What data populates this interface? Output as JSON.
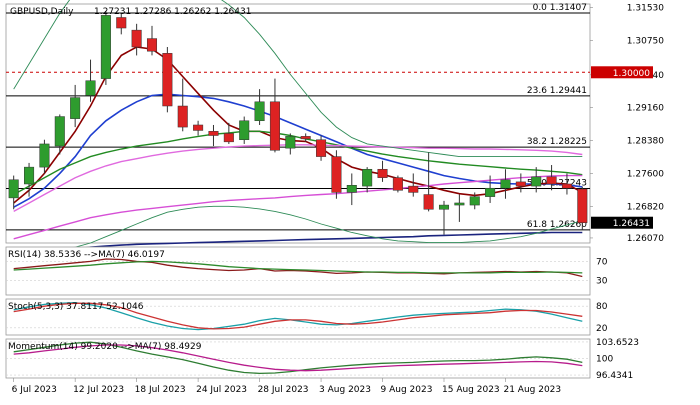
{
  "chart_data": {
    "type": "candlestick",
    "symbol": "GBPUSD",
    "timeframe": "Daily",
    "header": {
      "title": "GBPUSD,Daily",
      "ohlc": [
        "1.27231",
        "1.27286",
        "1.26262",
        "1.26431"
      ]
    },
    "x_labels": [
      {
        "label": "6 Jul 2023",
        "index": 0
      },
      {
        "label": "12 Jul 2023",
        "index": 4
      },
      {
        "label": "18 Jul 2023",
        "index": 8
      },
      {
        "label": "24 Jul 2023",
        "index": 12
      },
      {
        "label": "28 Jul 2023",
        "index": 16
      },
      {
        "label": "3 Aug 2023",
        "index": 20
      },
      {
        "label": "9 Aug 2023",
        "index": 24
      },
      {
        "label": "15 Aug 2023",
        "index": 28
      },
      {
        "label": "21 Aug 2023",
        "index": 32
      }
    ],
    "price_axis": {
      "range": [
        1.2595,
        1.3162
      ],
      "ticks": [
        {
          "value": 1.3154,
          "label": "1.31530"
        },
        {
          "value": 1.3075,
          "label": "1.30750"
        },
        {
          "value": 1.2994,
          "label": "1.29940"
        },
        {
          "value": 1.2916,
          "label": "1.29160"
        },
        {
          "value": 1.2838,
          "label": "1.28380"
        },
        {
          "value": 1.276,
          "label": "1.27600"
        },
        {
          "value": 1.2682,
          "label": "1.26820"
        },
        {
          "value": 1.2607,
          "label": "1.26070"
        }
      ],
      "current_price": {
        "value": 1.26431,
        "label": "1.26431"
      },
      "marked_level": {
        "value": 1.3,
        "label": "1.30000",
        "color": "#cc0000"
      }
    },
    "fibonacci": [
      {
        "label": "0.0 1.31407",
        "value": 1.31407
      },
      {
        "label": "23.6 1.29441",
        "value": 1.29441
      },
      {
        "label": "38.2 1.28225",
        "value": 1.28225
      },
      {
        "label": "50.0 1.27243",
        "value": 1.27243
      },
      {
        "label": "61.8 1.26260",
        "value": 1.2626
      }
    ],
    "candles": [
      {
        "o": 1.2702,
        "h": 1.2755,
        "l": 1.2675,
        "c": 1.2745
      },
      {
        "o": 1.2735,
        "h": 1.2785,
        "l": 1.2705,
        "c": 1.2775
      },
      {
        "o": 1.2775,
        "h": 1.284,
        "l": 1.276,
        "c": 1.283
      },
      {
        "o": 1.2825,
        "h": 1.29,
        "l": 1.2805,
        "c": 1.2895
      },
      {
        "o": 1.289,
        "h": 1.297,
        "l": 1.287,
        "c": 1.294
      },
      {
        "o": 1.2945,
        "h": 1.303,
        "l": 1.293,
        "c": 1.298
      },
      {
        "o": 1.2985,
        "h": 1.3145,
        "l": 1.297,
        "c": 1.3135
      },
      {
        "o": 1.313,
        "h": 1.3142,
        "l": 1.309,
        "c": 1.3105
      },
      {
        "o": 1.31,
        "h": 1.3115,
        "l": 1.304,
        "c": 1.306
      },
      {
        "o": 1.308,
        "h": 1.311,
        "l": 1.304,
        "c": 1.305
      },
      {
        "o": 1.3045,
        "h": 1.306,
        "l": 1.2905,
        "c": 1.292
      },
      {
        "o": 1.292,
        "h": 1.2985,
        "l": 1.286,
        "c": 1.287
      },
      {
        "o": 1.2875,
        "h": 1.2885,
        "l": 1.285,
        "c": 1.2862
      },
      {
        "o": 1.286,
        "h": 1.2875,
        "l": 1.2825,
        "c": 1.285
      },
      {
        "o": 1.2855,
        "h": 1.288,
        "l": 1.283,
        "c": 1.2835
      },
      {
        "o": 1.284,
        "h": 1.2895,
        "l": 1.283,
        "c": 1.2885
      },
      {
        "o": 1.2885,
        "h": 1.296,
        "l": 1.2875,
        "c": 1.293
      },
      {
        "o": 1.293,
        "h": 1.2985,
        "l": 1.281,
        "c": 1.2815
      },
      {
        "o": 1.282,
        "h": 1.2855,
        "l": 1.2805,
        "c": 1.2848
      },
      {
        "o": 1.2848,
        "h": 1.2855,
        "l": 1.2835,
        "c": 1.2842
      },
      {
        "o": 1.284,
        "h": 1.285,
        "l": 1.279,
        "c": 1.28
      },
      {
        "o": 1.28,
        "h": 1.2815,
        "l": 1.27,
        "c": 1.2715
      },
      {
        "o": 1.2715,
        "h": 1.276,
        "l": 1.2685,
        "c": 1.2732
      },
      {
        "o": 1.273,
        "h": 1.2775,
        "l": 1.2715,
        "c": 1.277
      },
      {
        "o": 1.277,
        "h": 1.279,
        "l": 1.274,
        "c": 1.275
      },
      {
        "o": 1.275,
        "h": 1.2755,
        "l": 1.2715,
        "c": 1.272
      },
      {
        "o": 1.273,
        "h": 1.276,
        "l": 1.2705,
        "c": 1.2715
      },
      {
        "o": 1.271,
        "h": 1.281,
        "l": 1.267,
        "c": 1.2675
      },
      {
        "o": 1.2675,
        "h": 1.2695,
        "l": 1.2615,
        "c": 1.2685
      },
      {
        "o": 1.2685,
        "h": 1.271,
        "l": 1.2645,
        "c": 1.269
      },
      {
        "o": 1.2685,
        "h": 1.2715,
        "l": 1.2675,
        "c": 1.2705
      },
      {
        "o": 1.2705,
        "h": 1.2755,
        "l": 1.269,
        "c": 1.2725
      },
      {
        "o": 1.2725,
        "h": 1.277,
        "l": 1.27,
        "c": 1.2745
      },
      {
        "o": 1.274,
        "h": 1.276,
        "l": 1.2715,
        "c": 1.273
      },
      {
        "o": 1.273,
        "h": 1.2775,
        "l": 1.2715,
        "c": 1.2752
      },
      {
        "o": 1.2752,
        "h": 1.278,
        "l": 1.272,
        "c": 1.2735
      },
      {
        "o": 1.2735,
        "h": 1.276,
        "l": 1.271,
        "c": 1.2725
      },
      {
        "o": 1.27231,
        "h": 1.27286,
        "l": 1.26262,
        "c": 1.26431
      }
    ],
    "overlays": [
      {
        "name": "",
        "color": "#1f3fd0",
        "width": 1.6,
        "values": [
          1.268,
          1.27,
          1.2725,
          1.276,
          1.28,
          1.285,
          1.2885,
          1.291,
          1.293,
          1.2945,
          1.2948,
          1.2945,
          1.2942,
          1.2938,
          1.293,
          1.292,
          1.2908,
          1.2895,
          1.288,
          1.2865,
          1.285,
          1.2835,
          1.282,
          1.2805,
          1.2795,
          1.2785,
          1.2775,
          1.2765,
          1.2755,
          1.2748,
          1.2742,
          1.2738,
          1.2736,
          1.2735,
          1.2735,
          1.2735,
          1.2733,
          1.2728
        ]
      },
      {
        "name": "",
        "color": "#8b0000",
        "width": 1.6,
        "values": [
          1.269,
          1.272,
          1.276,
          1.281,
          1.286,
          1.292,
          1.299,
          1.304,
          1.306,
          1.3055,
          1.303,
          1.299,
          1.295,
          1.291,
          1.2875,
          1.286,
          1.286,
          1.2845,
          1.2838,
          1.2836,
          1.282,
          1.2795,
          1.2775,
          1.2765,
          1.2758,
          1.2748,
          1.2738,
          1.273,
          1.272,
          1.2712,
          1.2708,
          1.2712,
          1.272,
          1.2728,
          1.2735,
          1.2737,
          1.2735,
          1.2715
        ]
      },
      {
        "name": "",
        "color": "#228b22",
        "width": 1.4,
        "values": [
          1.271,
          1.273,
          1.275,
          1.277,
          1.2785,
          1.28,
          1.281,
          1.2818,
          1.2825,
          1.283,
          1.2835,
          1.2842,
          1.2848,
          1.2853,
          1.2856,
          1.286,
          1.286,
          1.2856,
          1.285,
          1.2842,
          1.2835,
          1.2828,
          1.282,
          1.2813,
          1.2806,
          1.28,
          1.2795,
          1.279,
          1.2786,
          1.2782,
          1.2779,
          1.2776,
          1.2773,
          1.277,
          1.2768,
          1.2765,
          1.2762,
          1.2757
        ]
      },
      {
        "name": "",
        "color": "#e06adf",
        "width": 1.4,
        "values": [
          1.267,
          1.269,
          1.271,
          1.273,
          1.275,
          1.2765,
          1.2778,
          1.2788,
          1.2795,
          1.2802,
          1.2808,
          1.2813,
          1.2817,
          1.282,
          1.2823,
          1.2825,
          1.2826,
          1.2827,
          1.2828,
          1.2828,
          1.2827,
          1.2826,
          1.2825,
          1.2824,
          1.2823,
          1.2822,
          1.2821,
          1.282,
          1.282,
          1.2819,
          1.2818,
          1.2818,
          1.2817,
          1.2816,
          1.2815,
          1.2813,
          1.281,
          1.2805
        ]
      },
      {
        "name": "",
        "color": "#d64fd6",
        "width": 1.4,
        "values": [
          1.2605,
          1.2615,
          1.2625,
          1.2635,
          1.2645,
          1.2655,
          1.2662,
          1.2668,
          1.2673,
          1.2677,
          1.2681,
          1.2685,
          1.2689,
          1.2693,
          1.2696,
          1.2698,
          1.27,
          1.2702,
          1.2705,
          1.2708,
          1.271,
          1.2712,
          1.2715,
          1.2718,
          1.2721,
          1.2724,
          1.2728,
          1.2731,
          1.2735,
          1.2738,
          1.2741,
          1.2744,
          1.2747,
          1.275,
          1.2752,
          1.2754,
          1.2755,
          1.2755
        ]
      },
      {
        "name": "",
        "color": "#1a237e",
        "width": 1.6,
        "values": [
          1.256,
          1.2565,
          1.257,
          1.2575,
          1.258,
          1.2585,
          1.2588,
          1.259,
          1.2592,
          1.2593,
          1.2594,
          1.2595,
          1.2596,
          1.2597,
          1.2598,
          1.2599,
          1.26,
          1.2601,
          1.2602,
          1.2603,
          1.2604,
          1.2605,
          1.2606,
          1.2607,
          1.2608,
          1.2609,
          1.261,
          1.2612,
          1.2613,
          1.2614,
          1.2615,
          1.2616,
          1.2617,
          1.2618,
          1.2619,
          1.262,
          1.262,
          1.262
        ]
      },
      {
        "name": "",
        "color": "#2e8b57",
        "width": 0.9,
        "values": [
          1.296,
          1.302,
          1.308,
          1.314,
          1.319,
          1.322,
          1.324,
          1.325,
          1.3245,
          1.3238,
          1.323,
          1.322,
          1.3205,
          1.3185,
          1.316,
          1.313,
          1.309,
          1.3045,
          1.2995,
          1.295,
          1.2905,
          1.287,
          1.2845,
          1.283,
          1.2825,
          1.282,
          1.2815,
          1.281,
          1.2805,
          1.28,
          1.28,
          1.28,
          1.28,
          1.28,
          1.28,
          1.28,
          1.28,
          1.28
        ]
      },
      {
        "name": "",
        "color": "#2e8b57",
        "width": 0.9,
        "values": [
          1.257,
          1.257,
          1.2575,
          1.258,
          1.2585,
          1.2595,
          1.261,
          1.2625,
          1.264,
          1.2655,
          1.2668,
          1.2675,
          1.268,
          1.2682,
          1.2682,
          1.268,
          1.2676,
          1.267,
          1.2662,
          1.2652,
          1.264,
          1.263,
          1.262,
          1.2612,
          1.2605,
          1.26,
          1.2598,
          1.2596,
          1.2596,
          1.2596,
          1.2598,
          1.26,
          1.2605,
          1.261,
          1.2618,
          1.2628,
          1.2638,
          1.2648
        ]
      }
    ],
    "panels": [
      {
        "id": "rsi",
        "label": "RSI(14) 38.5336",
        "ma_label": "MA(7) 46.0197",
        "range": [
          0,
          100
        ],
        "ticks": [
          {
            "value": 70,
            "label": "70"
          },
          {
            "value": 30,
            "label": "30"
          }
        ],
        "series": [
          {
            "name": "RSI(14)",
            "color": "#8b1a1a",
            "values": [
              55,
              58,
              61,
              64,
              67,
              70,
              75,
              74,
              70,
              68,
              62,
              58,
              55,
              53,
              51,
              52,
              55,
              50,
              51,
              50,
              48,
              45,
              46,
              48,
              47,
              46,
              46,
              45,
              44,
              46,
              47,
              48,
              49,
              48,
              49,
              48,
              46,
              38.5
            ]
          },
          {
            "name": "MA(7)",
            "color": "#2e8b2e",
            "values": [
              52,
              54,
              56,
              58,
              60,
              62,
              65,
              67,
              69,
              70,
              69,
              67,
              65,
              62,
              59,
              57,
              55,
              54,
              53,
              52,
              51,
              50,
              49,
              48,
              48,
              47,
              47,
              46,
              46,
              46,
              46,
              46,
              47,
              47,
              47,
              48,
              47,
              46
            ]
          }
        ]
      },
      {
        "id": "stoch",
        "label": "Stoch(5,3,3) 37.8117 52.1046",
        "range": [
          0,
          100
        ],
        "ticks": [
          {
            "value": 80,
            "label": "80"
          },
          {
            "value": 20,
            "label": "20"
          }
        ],
        "series": [
          {
            "name": "Stoch %K",
            "color": "#1aa0a8",
            "values": [
              70,
              78,
              85,
              88,
              90,
              84,
              75,
              62,
              48,
              35,
              25,
              18,
              15,
              18,
              24,
              30,
              40,
              46,
              42,
              36,
              30,
              28,
              32,
              38,
              44,
              50,
              55,
              58,
              60,
              62,
              64,
              68,
              72,
              70,
              66,
              58,
              48,
              38
            ]
          },
          {
            "name": "Stoch %D",
            "color": "#cc3333",
            "values": [
              65,
              72,
              80,
              85,
              88,
              88,
              84,
              76,
              62,
              50,
              38,
              28,
              20,
              17,
              18,
              22,
              30,
              38,
              42,
              42,
              38,
              32,
              30,
              32,
              36,
              42,
              48,
              52,
              56,
              58,
              60,
              62,
              66,
              68,
              68,
              64,
              58,
              52
            ]
          }
        ]
      },
      {
        "id": "momentum",
        "label": "Momentum(14) 99.2020",
        "ma_label": "MA(7) 98.4929",
        "range": [
          95.8,
          104.3
        ],
        "ticks": [
          {
            "value": 103.6523,
            "label": "103.6523"
          },
          {
            "value": 100,
            "label": "100"
          },
          {
            "value": 96.4341,
            "label": "96.4341"
          }
        ],
        "series": [
          {
            "name": "Momentum(14)",
            "color": "#2e7d32",
            "values": [
              101.5,
              102.0,
              102.5,
              103.0,
              103.4,
              103.6,
              103.2,
              102.5,
              101.7,
              101.0,
              100.4,
              99.8,
              99.0,
              98.2,
              97.5,
              97.0,
              96.8,
              96.9,
              97.2,
              97.6,
              98.0,
              98.3,
              98.6,
              98.8,
              99.0,
              99.1,
              99.2,
              99.4,
              99.5,
              99.6,
              99.6,
              99.7,
              99.9,
              100.2,
              100.4,
              100.2,
              99.9,
              99.2
            ]
          },
          {
            "name": "MA(7)",
            "color": "#b71c8c",
            "values": [
              101.0,
              101.3,
              101.7,
              102.1,
              102.5,
              102.8,
              103.0,
              103.0,
              102.8,
              102.4,
              101.9,
              101.3,
              100.6,
              99.9,
              99.2,
              98.6,
              98.1,
              97.7,
              97.5,
              97.4,
              97.5,
              97.7,
              97.9,
              98.1,
              98.3,
              98.5,
              98.6,
              98.7,
              98.8,
              98.9,
              99.0,
              99.1,
              99.2,
              99.3,
              99.4,
              99.3,
              99.0,
              98.5
            ]
          }
        ]
      }
    ],
    "colors": {
      "bull_candle": "#2e9c2e",
      "bear_candle": "#dd2222",
      "fib_line": "#000000",
      "grid": "#cfcfcf"
    }
  }
}
